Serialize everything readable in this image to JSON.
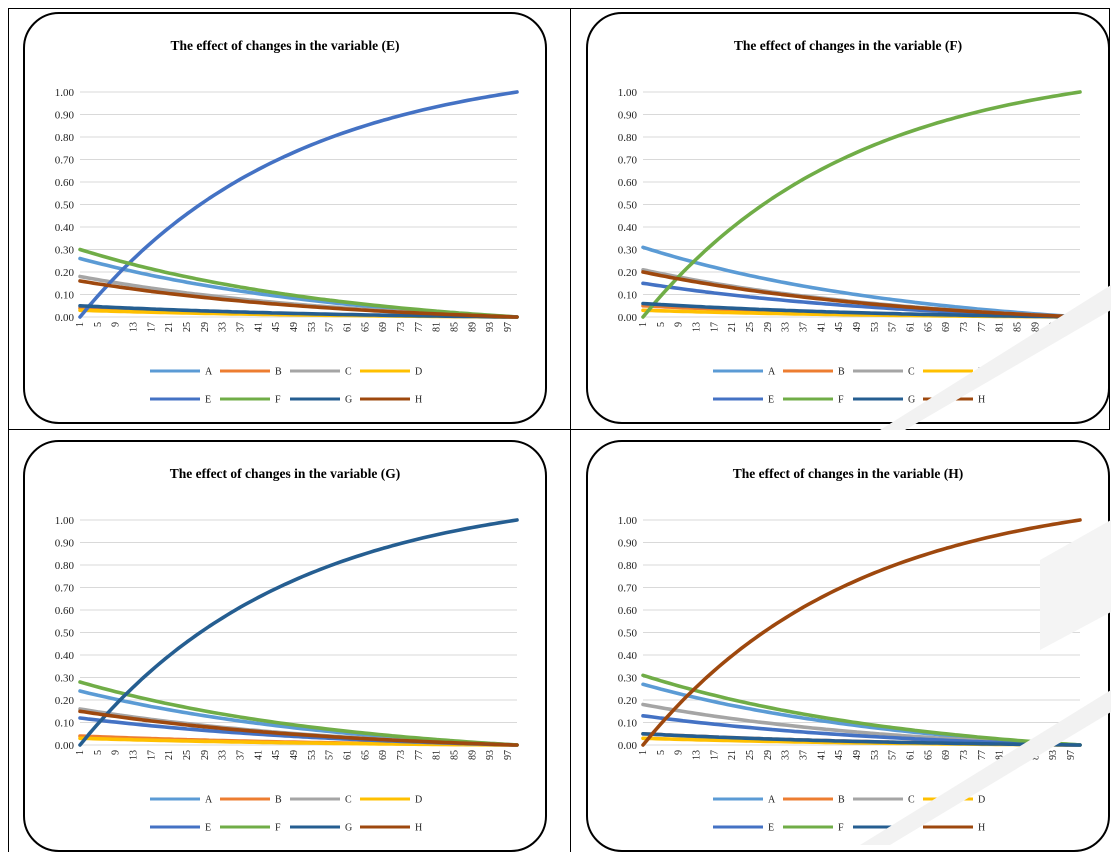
{
  "chart_data": [
    {
      "type": "line",
      "title": "The effect of changes in the variable (E)",
      "xlabel": "",
      "ylabel": "",
      "ylim": [
        0,
        1
      ],
      "y_ticks": [
        "1.00",
        "0.90",
        "0.80",
        "0.70",
        "0.60",
        "0.50",
        "0.40",
        "0.30",
        "0.20",
        "0.10",
        "0.00"
      ],
      "x_ticks": [
        "1",
        "5",
        "9",
        "13",
        "17",
        "21",
        "25",
        "29",
        "33",
        "37",
        "41",
        "45",
        "49",
        "53",
        "57",
        "61",
        "65",
        "69",
        "73",
        "77",
        "81",
        "85",
        "89",
        "93",
        "97"
      ],
      "x_range": [
        1,
        99
      ],
      "grid": true,
      "legend_position": "bottom",
      "series": [
        {
          "name": "A",
          "color": "#5b9bd5",
          "start": 0.26,
          "shape": "decay"
        },
        {
          "name": "B",
          "color": "#ed7d31",
          "start": 0.04,
          "shape": "decay"
        },
        {
          "name": "C",
          "color": "#a5a5a5",
          "start": 0.18,
          "shape": "decay"
        },
        {
          "name": "D",
          "color": "#ffc000",
          "start": 0.03,
          "shape": "decay"
        },
        {
          "name": "E",
          "color": "#4472c4",
          "start": 0.0,
          "shape": "rise"
        },
        {
          "name": "F",
          "color": "#70ad47",
          "start": 0.3,
          "shape": "decay"
        },
        {
          "name": "G",
          "color": "#255e91",
          "start": 0.05,
          "shape": "decay"
        },
        {
          "name": "H",
          "color": "#9e480e",
          "start": 0.16,
          "shape": "decay"
        }
      ]
    },
    {
      "type": "line",
      "title": "The effect of changes in the variable (F)",
      "xlabel": "",
      "ylabel": "",
      "ylim": [
        0,
        1
      ],
      "y_ticks": [
        "1.00",
        "0.90",
        "0.80",
        "0.70",
        "0.60",
        "0.50",
        "0.40",
        "0.30",
        "0.20",
        "0.10",
        "0.00"
      ],
      "x_ticks": [
        "1",
        "5",
        "9",
        "13",
        "17",
        "21",
        "25",
        "29",
        "33",
        "37",
        "41",
        "45",
        "49",
        "53",
        "57",
        "61",
        "65",
        "69",
        "73",
        "77",
        "81",
        "85",
        "89",
        "93",
        "97"
      ],
      "x_range": [
        1,
        99
      ],
      "grid": true,
      "legend_position": "bottom",
      "series": [
        {
          "name": "A",
          "color": "#5b9bd5",
          "start": 0.31,
          "shape": "decay"
        },
        {
          "name": "B",
          "color": "#ed7d31",
          "start": 0.05,
          "shape": "decay"
        },
        {
          "name": "C",
          "color": "#a5a5a5",
          "start": 0.21,
          "shape": "decay"
        },
        {
          "name": "D",
          "color": "#ffc000",
          "start": 0.03,
          "shape": "decay"
        },
        {
          "name": "E",
          "color": "#4472c4",
          "start": 0.15,
          "shape": "decay"
        },
        {
          "name": "F",
          "color": "#70ad47",
          "start": 0.0,
          "shape": "rise"
        },
        {
          "name": "G",
          "color": "#255e91",
          "start": 0.06,
          "shape": "decay"
        },
        {
          "name": "H",
          "color": "#9e480e",
          "start": 0.2,
          "shape": "decay"
        }
      ]
    },
    {
      "type": "line",
      "title": "The effect of changes in the variable (G)",
      "xlabel": "",
      "ylabel": "",
      "ylim": [
        0,
        1
      ],
      "y_ticks": [
        "1.00",
        "0.90",
        "0.80",
        "0.70",
        "0.60",
        "0.50",
        "0.40",
        "0.30",
        "0.20",
        "0.10",
        "0.00"
      ],
      "x_ticks": [
        "1",
        "5",
        "9",
        "13",
        "17",
        "21",
        "25",
        "29",
        "33",
        "37",
        "41",
        "45",
        "49",
        "53",
        "57",
        "61",
        "65",
        "69",
        "73",
        "77",
        "81",
        "85",
        "89",
        "93",
        "97"
      ],
      "x_range": [
        1,
        99
      ],
      "grid": true,
      "legend_position": "bottom",
      "series": [
        {
          "name": "A",
          "color": "#5b9bd5",
          "start": 0.24,
          "shape": "decay"
        },
        {
          "name": "B",
          "color": "#ed7d31",
          "start": 0.04,
          "shape": "decay"
        },
        {
          "name": "C",
          "color": "#a5a5a5",
          "start": 0.16,
          "shape": "decay"
        },
        {
          "name": "D",
          "color": "#ffc000",
          "start": 0.03,
          "shape": "decay"
        },
        {
          "name": "E",
          "color": "#4472c4",
          "start": 0.12,
          "shape": "decay"
        },
        {
          "name": "F",
          "color": "#70ad47",
          "start": 0.28,
          "shape": "decay"
        },
        {
          "name": "G",
          "color": "#255e91",
          "start": 0.0,
          "shape": "rise"
        },
        {
          "name": "H",
          "color": "#9e480e",
          "start": 0.15,
          "shape": "decay"
        }
      ]
    },
    {
      "type": "line",
      "title": "The effect of changes in the variable (H)",
      "xlabel": "",
      "ylabel": "",
      "ylim": [
        0,
        1
      ],
      "y_ticks": [
        "1.00",
        "0.90",
        "0.80",
        "0.70",
        "0.60",
        "0.50",
        "0.40",
        "0.30",
        "0.20",
        "0.10",
        "0.00"
      ],
      "x_ticks": [
        "1",
        "5",
        "9",
        "13",
        "17",
        "21",
        "25",
        "29",
        "33",
        "37",
        "41",
        "45",
        "49",
        "53",
        "57",
        "61",
        "65",
        "69",
        "73",
        "77",
        "81",
        "85",
        "89",
        "93",
        "97"
      ],
      "x_range": [
        1,
        99
      ],
      "grid": true,
      "legend_position": "bottom",
      "series": [
        {
          "name": "A",
          "color": "#5b9bd5",
          "start": 0.27,
          "shape": "decay"
        },
        {
          "name": "B",
          "color": "#ed7d31",
          "start": 0.05,
          "shape": "decay"
        },
        {
          "name": "C",
          "color": "#a5a5a5",
          "start": 0.18,
          "shape": "decay"
        },
        {
          "name": "D",
          "color": "#ffc000",
          "start": 0.03,
          "shape": "decay"
        },
        {
          "name": "E",
          "color": "#4472c4",
          "start": 0.13,
          "shape": "decay"
        },
        {
          "name": "F",
          "color": "#70ad47",
          "start": 0.31,
          "shape": "decay"
        },
        {
          "name": "G",
          "color": "#255e91",
          "start": 0.05,
          "shape": "decay"
        },
        {
          "name": "H",
          "color": "#9e480e",
          "start": 0.0,
          "shape": "rise"
        }
      ]
    }
  ]
}
